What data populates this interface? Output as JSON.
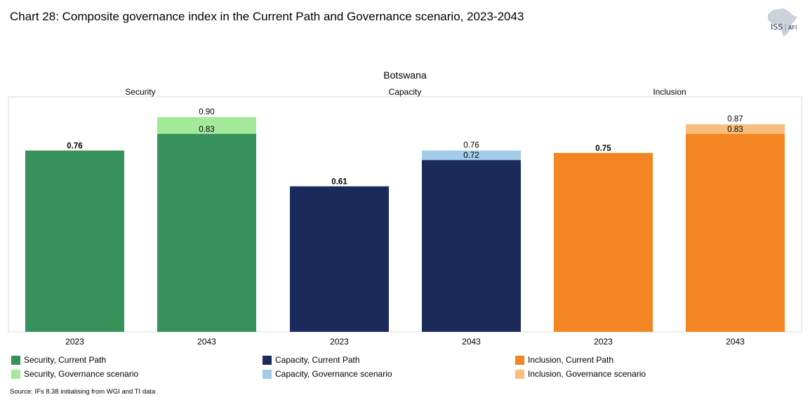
{
  "header": {
    "title": "Chart 28: Composite governance index in the Current Path and Governance scenario, 2023-2043"
  },
  "logo": {
    "name": "ISS",
    "sub": "AFI",
    "icon": "africa-map-icon"
  },
  "chart_data": {
    "type": "bar",
    "stacked": true,
    "title": "Botswana",
    "ylim": [
      0,
      1.0
    ],
    "grid": false,
    "legend_placement": "bottom",
    "groups": [
      {
        "name": "Security",
        "years": [
          "2023",
          "2043"
        ],
        "current_path": [
          0.76,
          0.83
        ],
        "governance": [
          0.76,
          0.9
        ],
        "labels_top": [
          "",
          "0.90"
        ],
        "labels_base": [
          "0.76",
          "0.83"
        ],
        "color_current": "#36925a",
        "color_governance": "#a4e89a"
      },
      {
        "name": "Capacity",
        "years": [
          "2023",
          "2043"
        ],
        "current_path": [
          0.61,
          0.72
        ],
        "governance": [
          0.61,
          0.76
        ],
        "labels_top": [
          "",
          "0.76"
        ],
        "labels_base": [
          "0.61",
          "0.72"
        ],
        "color_current": "#1a2a5a",
        "color_governance": "#a3cbea"
      },
      {
        "name": "Inclusion",
        "years": [
          "2023",
          "2043"
        ],
        "current_path": [
          0.75,
          0.83
        ],
        "governance": [
          0.75,
          0.87
        ],
        "labels_top": [
          "",
          "0.87"
        ],
        "labels_base": [
          "0.75",
          "0.83"
        ],
        "color_current": "#f38523",
        "color_governance": "#f9bd7e"
      }
    ]
  },
  "legend": [
    {
      "label": "Security, Current Path",
      "color": "#36925a"
    },
    {
      "label": "Security, Governance scenario",
      "color": "#a4e89a"
    },
    {
      "label": "Capacity, Current Path",
      "color": "#1a2a5a"
    },
    {
      "label": "Capacity, Governance scenario",
      "color": "#a3cbea"
    },
    {
      "label": "Inclusion, Current Path",
      "color": "#f38523"
    },
    {
      "label": "Inclusion, Governance scenario",
      "color": "#f9bd7e"
    }
  ],
  "footer": {
    "source": "Source: IFs 8.38 initialising from WGI and TI data"
  }
}
